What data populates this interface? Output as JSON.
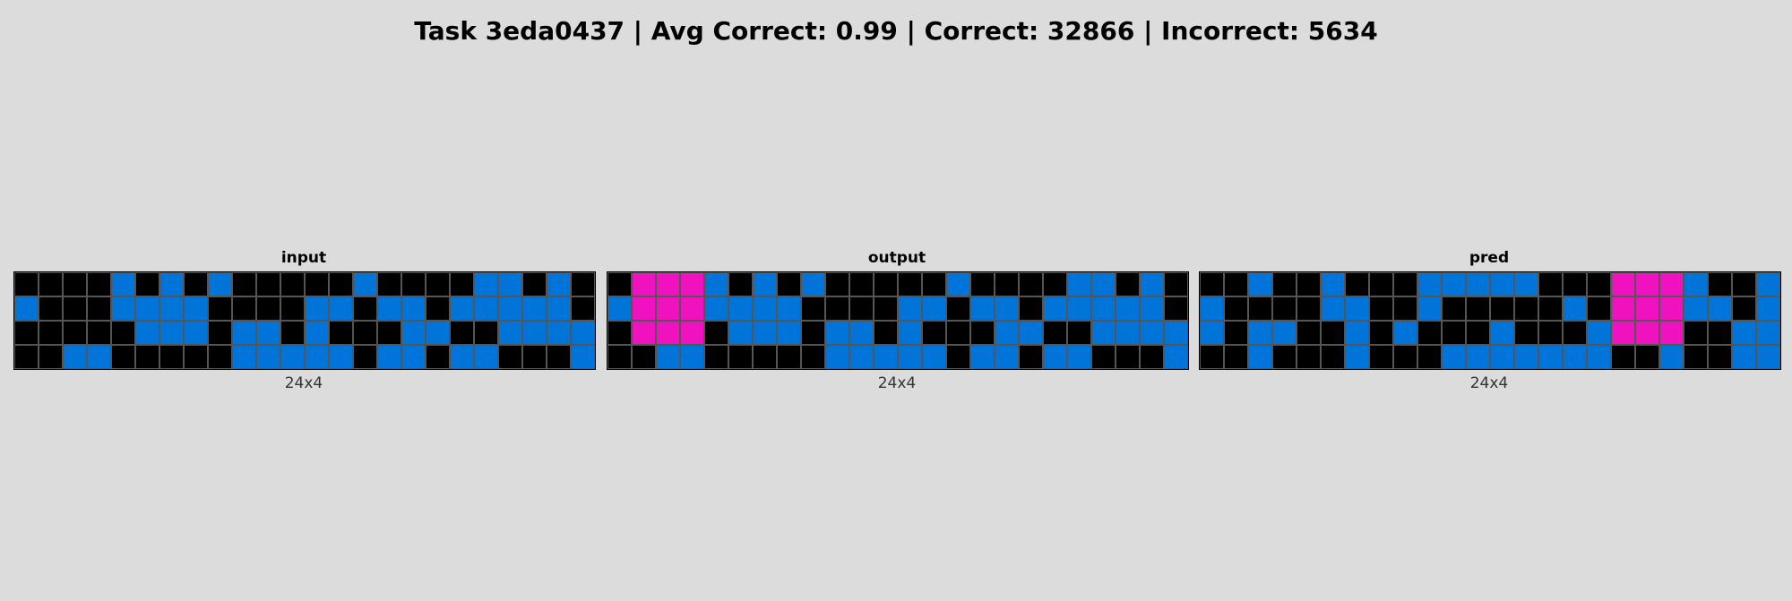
{
  "header": {
    "title": "Task 3eda0437 | Avg Correct: 0.99 | Correct: 32866 | Incorrect: 5634"
  },
  "palette": {
    "0": "#000000",
    "1": "#0074d9",
    "6": "#f012be"
  },
  "panels": [
    {
      "label": "input",
      "dims": "24x4",
      "grid": [
        [
          0,
          0,
          0,
          0,
          1,
          0,
          1,
          0,
          1,
          0,
          0,
          0,
          0,
          0,
          1,
          0,
          0,
          0,
          0,
          1,
          1,
          0,
          1,
          0
        ],
        [
          1,
          0,
          0,
          0,
          1,
          1,
          1,
          1,
          0,
          0,
          0,
          0,
          1,
          1,
          0,
          1,
          1,
          0,
          1,
          1,
          1,
          1,
          1,
          0
        ],
        [
          0,
          0,
          0,
          0,
          0,
          1,
          1,
          1,
          0,
          1,
          1,
          0,
          1,
          0,
          0,
          0,
          1,
          1,
          0,
          0,
          1,
          1,
          1,
          1
        ],
        [
          0,
          0,
          1,
          1,
          0,
          0,
          0,
          0,
          0,
          1,
          1,
          1,
          1,
          1,
          0,
          1,
          1,
          0,
          1,
          1,
          0,
          0,
          0,
          1
        ]
      ]
    },
    {
      "label": "output",
      "dims": "24x4",
      "grid": [
        [
          0,
          6,
          6,
          6,
          1,
          0,
          1,
          0,
          1,
          0,
          0,
          0,
          0,
          0,
          1,
          0,
          0,
          0,
          0,
          1,
          1,
          0,
          1,
          0
        ],
        [
          1,
          6,
          6,
          6,
          1,
          1,
          1,
          1,
          0,
          0,
          0,
          0,
          1,
          1,
          0,
          1,
          1,
          0,
          1,
          1,
          1,
          1,
          1,
          0
        ],
        [
          0,
          6,
          6,
          6,
          0,
          1,
          1,
          1,
          0,
          1,
          1,
          0,
          1,
          0,
          0,
          0,
          1,
          1,
          0,
          0,
          1,
          1,
          1,
          1
        ],
        [
          0,
          0,
          1,
          1,
          0,
          0,
          0,
          0,
          0,
          1,
          1,
          1,
          1,
          1,
          0,
          1,
          1,
          0,
          1,
          1,
          0,
          0,
          0,
          1
        ]
      ]
    },
    {
      "label": "pred",
      "dims": "24x4",
      "grid": [
        [
          0,
          0,
          1,
          0,
          0,
          1,
          0,
          0,
          0,
          1,
          1,
          1,
          1,
          1,
          0,
          0,
          0,
          6,
          6,
          6,
          1,
          0,
          0,
          1
        ],
        [
          1,
          0,
          0,
          0,
          0,
          1,
          1,
          0,
          0,
          1,
          0,
          0,
          0,
          0,
          0,
          1,
          0,
          6,
          6,
          6,
          1,
          1,
          0,
          1
        ],
        [
          1,
          0,
          1,
          1,
          0,
          0,
          1,
          0,
          1,
          0,
          0,
          0,
          1,
          0,
          0,
          0,
          1,
          6,
          6,
          6,
          0,
          0,
          1,
          1
        ],
        [
          0,
          0,
          1,
          0,
          0,
          0,
          1,
          0,
          0,
          0,
          1,
          1,
          1,
          1,
          1,
          1,
          1,
          0,
          0,
          1,
          0,
          0,
          1,
          1
        ]
      ]
    }
  ]
}
